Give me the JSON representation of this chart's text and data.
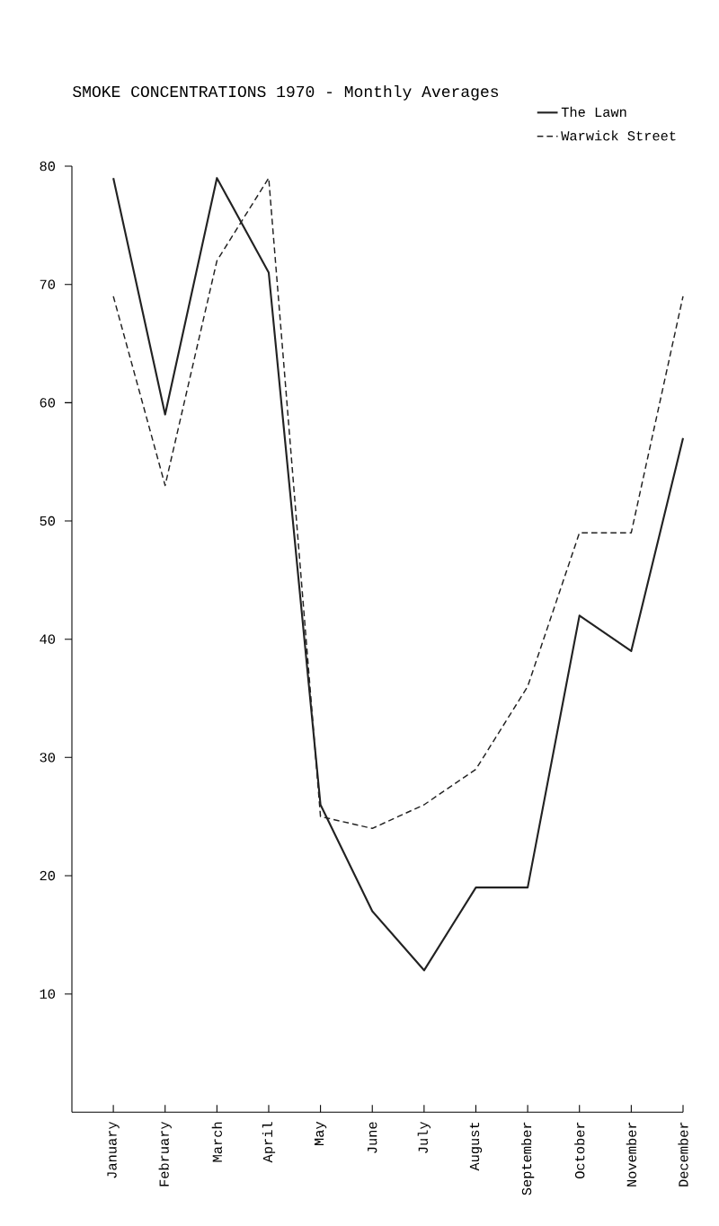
{
  "chart_data": {
    "type": "line",
    "title": "SMOKE CONCENTRATIONS 1970 - Monthly Averages",
    "categories": [
      "January",
      "February",
      "March",
      "April",
      "May",
      "June",
      "July",
      "August",
      "September",
      "October",
      "November",
      "December"
    ],
    "series": [
      {
        "name": "The Lawn",
        "color": "#222222",
        "line_style": "solid",
        "values": [
          79,
          59,
          79,
          71,
          26,
          17,
          12,
          19,
          19,
          42,
          39,
          57
        ]
      },
      {
        "name": "Warwick Street",
        "color": "#222222",
        "line_style": "dashed",
        "values": [
          69,
          53,
          72,
          79,
          25,
          24,
          26,
          29,
          36,
          49,
          49,
          69
        ]
      }
    ],
    "ylim": [
      0,
      80
    ],
    "yticks": [
      {
        "value": 10,
        "label": "10"
      },
      {
        "value": 20,
        "label": "20"
      },
      {
        "value": 30,
        "label": "30"
      },
      {
        "value": 40,
        "label": "40"
      },
      {
        "value": 50,
        "label": "50"
      },
      {
        "value": 60,
        "label": "60"
      },
      {
        "value": 70,
        "label": "70"
      },
      {
        "value": 80,
        "label": "80"
      }
    ],
    "grid": false,
    "legend": "top right"
  }
}
